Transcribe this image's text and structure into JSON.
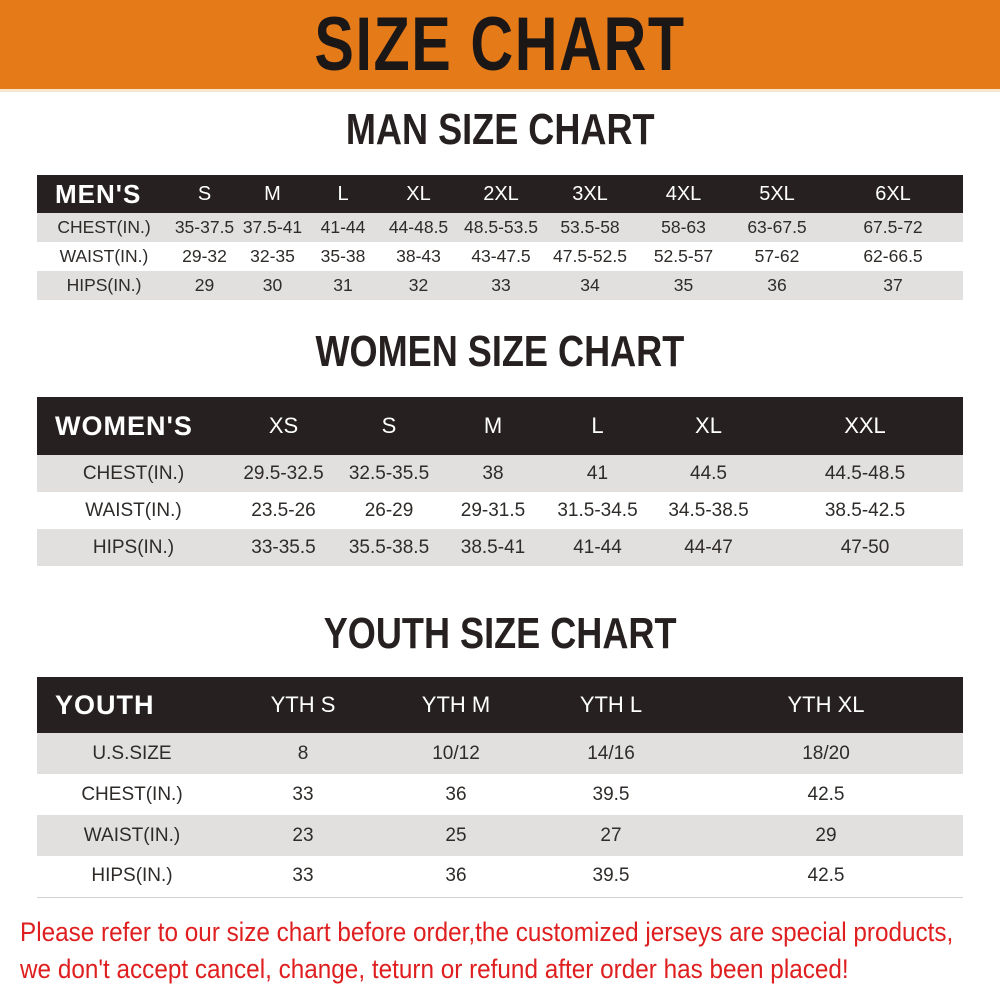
{
  "banner": {
    "title": "SIZE CHART",
    "bg_color": "#e57a18",
    "text_color": "#1c1717"
  },
  "sections": [
    {
      "id": "man",
      "heading": "MAN SIZE CHART",
      "table": {
        "header_label": "MEN'S",
        "columns": [
          "S",
          "M",
          "L",
          "XL",
          "2XL",
          "3XL",
          "4XL",
          "5XL",
          "6XL"
        ],
        "rows": [
          {
            "label": "CHEST(IN.)",
            "values": [
              "35-37.5",
              "37.5-41",
              "41-44",
              "44-48.5",
              "48.5-53.5",
              "53.5-58",
              "58-63",
              "63-67.5",
              "67.5-72"
            ]
          },
          {
            "label": "WAIST(IN.)",
            "values": [
              "29-32",
              "32-35",
              "35-38",
              "38-43",
              "43-47.5",
              "47.5-52.5",
              "52.5-57",
              "57-62",
              "62-66.5"
            ]
          },
          {
            "label": "HIPS(IN.)",
            "values": [
              "29",
              "30",
              "31",
              "32",
              "33",
              "34",
              "35",
              "36",
              "37"
            ]
          }
        ]
      }
    },
    {
      "id": "women",
      "heading": "WOMEN SIZE CHART",
      "table": {
        "header_label": "WOMEN'S",
        "columns": [
          "XS",
          "S",
          "M",
          "L",
          "XL",
          "XXL"
        ],
        "rows": [
          {
            "label": "CHEST(IN.)",
            "values": [
              "29.5-32.5",
              "32.5-35.5",
              "38",
              "41",
              "44.5",
              "44.5-48.5"
            ]
          },
          {
            "label": "WAIST(IN.)",
            "values": [
              "23.5-26",
              "26-29",
              "29-31.5",
              "31.5-34.5",
              "34.5-38.5",
              "38.5-42.5"
            ]
          },
          {
            "label": "HIPS(IN.)",
            "values": [
              "33-35.5",
              "35.5-38.5",
              "38.5-41",
              "41-44",
              "44-47",
              "47-50"
            ]
          }
        ]
      }
    },
    {
      "id": "youth",
      "heading": "YOUTH SIZE CHART",
      "table": {
        "header_label": "YOUTH",
        "columns": [
          "YTH S",
          "YTH M",
          "YTH L",
          "YTH XL"
        ],
        "rows": [
          {
            "label": "U.S.SIZE",
            "values": [
              "8",
              "10/12",
              "14/16",
              "18/20"
            ]
          },
          {
            "label": "CHEST(IN.)",
            "values": [
              "33",
              "36",
              "39.5",
              "42.5"
            ]
          },
          {
            "label": "WAIST(IN.)",
            "values": [
              "23",
              "25",
              "27",
              "29"
            ]
          },
          {
            "label": "HIPS(IN.)",
            "values": [
              "33",
              "36",
              "39.5",
              "42.5"
            ]
          }
        ]
      }
    }
  ],
  "footer": {
    "line1": "Please refer to our size chart before order,the customized jerseys are special products,",
    "line2": "we don't accept cancel, change, teturn or refund after order has been placed!",
    "text_color": "#df1f1f"
  },
  "colors": {
    "table_header_bg": "#262020",
    "row_stripe_gray": "#e1e0df",
    "row_stripe_white": "#ffffff"
  }
}
